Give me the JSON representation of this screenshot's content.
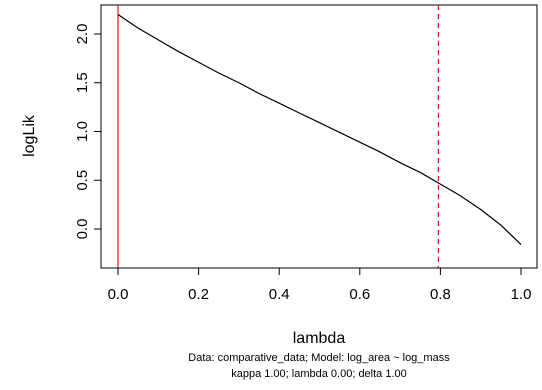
{
  "chart_data": {
    "type": "line",
    "xlabel": "lambda",
    "ylabel": "logLik",
    "xlim": [
      0,
      1
    ],
    "ylim": [
      -0.25,
      2.2
    ],
    "x_ticks": [
      "0.0",
      "0.2",
      "0.4",
      "0.6",
      "0.8",
      "1.0"
    ],
    "y_ticks": [
      "0.0",
      "0.5",
      "1.0",
      "1.5",
      "2.0"
    ],
    "grid": false,
    "series": [
      {
        "color": "#000000",
        "x": [
          0.0,
          0.05,
          0.1,
          0.15,
          0.2,
          0.25,
          0.3,
          0.35,
          0.4,
          0.45,
          0.5,
          0.55,
          0.6,
          0.65,
          0.7,
          0.75,
          0.8,
          0.85,
          0.9,
          0.95,
          1.0
        ],
        "y": [
          2.2,
          2.06,
          1.94,
          1.82,
          1.71,
          1.6,
          1.5,
          1.39,
          1.29,
          1.19,
          1.09,
          0.99,
          0.89,
          0.79,
          0.68,
          0.58,
          0.46,
          0.34,
          0.2,
          0.04,
          -0.16
        ]
      }
    ],
    "reference_lines": [
      {
        "axis": "x",
        "value": 0.0,
        "color": "#e0191f",
        "style": "solid"
      },
      {
        "axis": "x",
        "value": 0.795,
        "color": "#e0191f",
        "style": "dashed"
      }
    ],
    "caption_lines": [
      "Data: comparative_data; Model: log_area ~ log_mass",
      "kappa 1.00; lambda 0.00; delta 1.00"
    ]
  }
}
